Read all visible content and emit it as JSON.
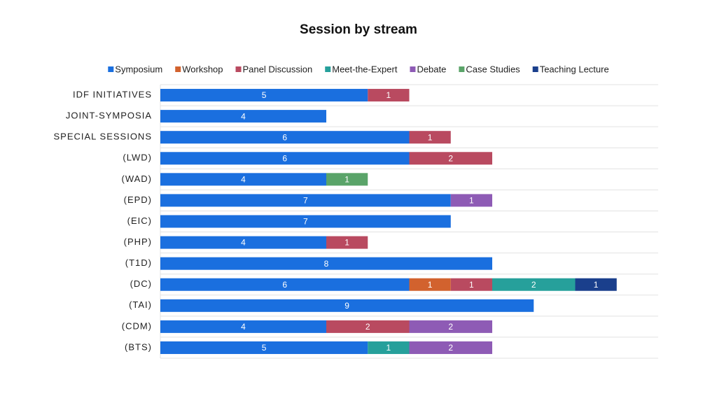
{
  "chart_data": {
    "type": "stacked-bar",
    "orientation": "horizontal",
    "title": "Session by stream",
    "categories": [
      "IDF INITIATIVES",
      "JOINT-SYMPOSIA",
      "SPECIAL SESSIONS",
      "(LWD)",
      "(WAD)",
      "(EPD)",
      "(EIC)",
      "(PHP)",
      "(T1D)",
      "(DC)",
      "(TAI)",
      "(CDM)",
      "(BTS)"
    ],
    "series": [
      {
        "name": "Symposium",
        "color": "#1a6fdf",
        "values": [
          5,
          4,
          6,
          6,
          4,
          7,
          7,
          4,
          8,
          6,
          9,
          4,
          5
        ]
      },
      {
        "name": "Workshop",
        "color": "#d2622e",
        "values": [
          null,
          null,
          null,
          null,
          null,
          null,
          null,
          null,
          null,
          1,
          null,
          null,
          null
        ]
      },
      {
        "name": "Panel Discussion",
        "color": "#b94a60",
        "values": [
          1,
          null,
          1,
          2,
          null,
          null,
          null,
          1,
          null,
          1,
          null,
          2,
          null
        ]
      },
      {
        "name": "Meet-the-Expert",
        "color": "#26a09b",
        "values": [
          null,
          null,
          null,
          null,
          null,
          null,
          null,
          null,
          null,
          2,
          null,
          null,
          1
        ]
      },
      {
        "name": "Debate",
        "color": "#8e5bb5",
        "values": [
          null,
          null,
          null,
          null,
          null,
          1,
          null,
          null,
          null,
          null,
          null,
          2,
          2
        ]
      },
      {
        "name": "Case Studies",
        "color": "#5aa469",
        "values": [
          null,
          null,
          null,
          null,
          1,
          null,
          null,
          null,
          null,
          null,
          null,
          null,
          null
        ]
      },
      {
        "name": "Teaching Lecture",
        "color": "#1a3f8c",
        "values": [
          null,
          null,
          null,
          null,
          null,
          null,
          null,
          null,
          null,
          1,
          null,
          null,
          null
        ]
      }
    ],
    "xlim": [
      0,
      12
    ],
    "legend": "top"
  }
}
